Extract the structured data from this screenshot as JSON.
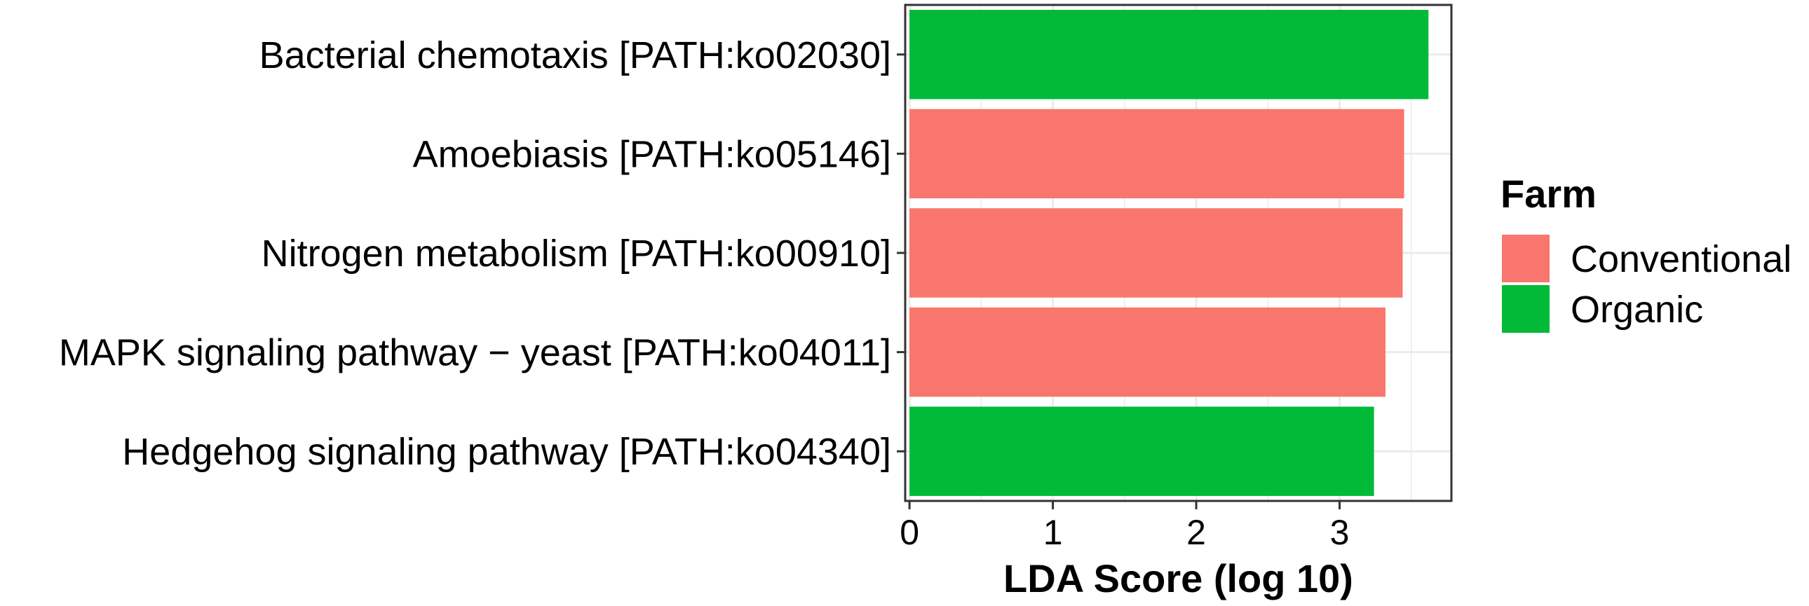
{
  "chart_data": {
    "type": "bar",
    "orientation": "horizontal",
    "categories": [
      "Bacterial chemotaxis [PATH:ko02030]",
      "Amoebiasis [PATH:ko05146]",
      "Nitrogen metabolism [PATH:ko00910]",
      "MAPK signaling pathway − yeast [PATH:ko04011]",
      "Hedgehog signaling pathway [PATH:ko04340]"
    ],
    "values": [
      3.62,
      3.45,
      3.44,
      3.32,
      3.24
    ],
    "groups": [
      "Organic",
      "Conventional",
      "Conventional",
      "Conventional",
      "Organic"
    ],
    "xlabel": "LDA Score (log 10)",
    "ylabel": "",
    "xlim": [
      -0.03,
      3.78
    ],
    "xticks": [
      "0",
      "1",
      "2",
      "3"
    ],
    "grid": true,
    "legend": {
      "title": "Farm",
      "position": "right",
      "items": [
        {
          "name": "Conventional",
          "color": "#F8766D"
        },
        {
          "name": "Organic",
          "color": "#00BA38"
        }
      ]
    }
  }
}
